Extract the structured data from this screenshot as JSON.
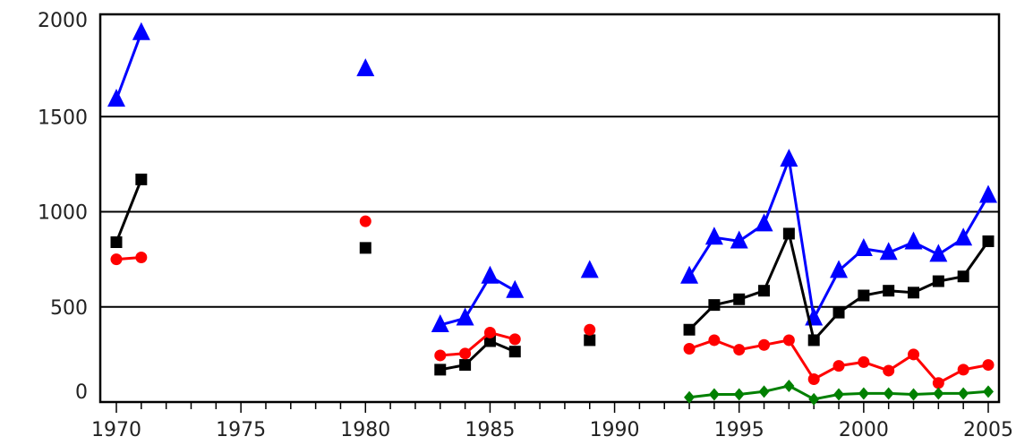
{
  "chart_data": {
    "type": "line",
    "title": "",
    "xlabel": "",
    "ylabel": "",
    "xlim": [
      1970,
      2005
    ],
    "ylim": [
      0,
      2000
    ],
    "x_ticks": [
      "1970",
      "1975",
      "1980",
      "1985",
      "1990",
      "1995",
      "2000",
      "2005"
    ],
    "y_ticks": [
      "0",
      "500",
      "1000",
      "1500",
      "2000"
    ],
    "grid": "horizontal",
    "legend": "none",
    "series": [
      {
        "color": "#0000ff",
        "marker": "triangle",
        "points": [
          [
            1970,
            1590
          ],
          [
            1971,
            1940
          ],
          [
            1980,
            1750
          ],
          [
            1983,
            405
          ],
          [
            1984,
            440
          ],
          [
            1985,
            660
          ],
          [
            1986,
            585
          ],
          [
            1989,
            690
          ],
          [
            1993,
            660
          ],
          [
            1994,
            865
          ],
          [
            1995,
            845
          ],
          [
            1996,
            935
          ],
          [
            1997,
            1275
          ],
          [
            1998,
            440
          ],
          [
            1999,
            690
          ],
          [
            2000,
            805
          ],
          [
            2001,
            785
          ],
          [
            2002,
            840
          ],
          [
            2003,
            775
          ],
          [
            2004,
            860
          ],
          [
            2005,
            1085
          ]
        ],
        "segments": [
          [
            1970,
            1971
          ],
          [
            1983,
            1986
          ],
          [
            1993,
            2005
          ]
        ]
      },
      {
        "color": "#000000",
        "marker": "square",
        "points": [
          [
            1970,
            840
          ],
          [
            1971,
            1170
          ],
          [
            1980,
            810
          ],
          [
            1983,
            170
          ],
          [
            1984,
            195
          ],
          [
            1985,
            320
          ],
          [
            1986,
            265
          ],
          [
            1989,
            325
          ],
          [
            1993,
            380
          ],
          [
            1994,
            510
          ],
          [
            1995,
            540
          ],
          [
            1996,
            585
          ],
          [
            1997,
            885
          ],
          [
            1998,
            325
          ],
          [
            1999,
            470
          ],
          [
            2000,
            560
          ],
          [
            2001,
            585
          ],
          [
            2002,
            575
          ],
          [
            2003,
            635
          ],
          [
            2004,
            660
          ],
          [
            2005,
            845
          ]
        ],
        "segments": [
          [
            1970,
            1971
          ],
          [
            1983,
            1986
          ],
          [
            1993,
            2005
          ]
        ]
      },
      {
        "color": "#ff0000",
        "marker": "circle",
        "points": [
          [
            1970,
            750
          ],
          [
            1971,
            760
          ],
          [
            1980,
            950
          ],
          [
            1983,
            245
          ],
          [
            1984,
            255
          ],
          [
            1985,
            365
          ],
          [
            1986,
            330
          ],
          [
            1989,
            380
          ],
          [
            1993,
            280
          ],
          [
            1994,
            325
          ],
          [
            1995,
            275
          ],
          [
            1996,
            300
          ],
          [
            1997,
            325
          ],
          [
            1998,
            120
          ],
          [
            1999,
            190
          ],
          [
            2000,
            210
          ],
          [
            2001,
            165
          ],
          [
            2002,
            250
          ],
          [
            2003,
            100
          ],
          [
            2004,
            170
          ],
          [
            2005,
            195
          ]
        ],
        "segments": [
          [
            1970,
            1971
          ],
          [
            1983,
            1986
          ],
          [
            1993,
            2005
          ]
        ]
      },
      {
        "color": "#008000",
        "marker": "diamond",
        "points": [
          [
            1993,
            25
          ],
          [
            1994,
            40
          ],
          [
            1995,
            40
          ],
          [
            1996,
            55
          ],
          [
            1997,
            85
          ],
          [
            1998,
            15
          ],
          [
            1999,
            40
          ],
          [
            2000,
            45
          ],
          [
            2001,
            45
          ],
          [
            2002,
            40
          ],
          [
            2003,
            45
          ],
          [
            2004,
            45
          ],
          [
            2005,
            55
          ]
        ],
        "segments": [
          [
            1993,
            2005
          ]
        ]
      }
    ]
  }
}
